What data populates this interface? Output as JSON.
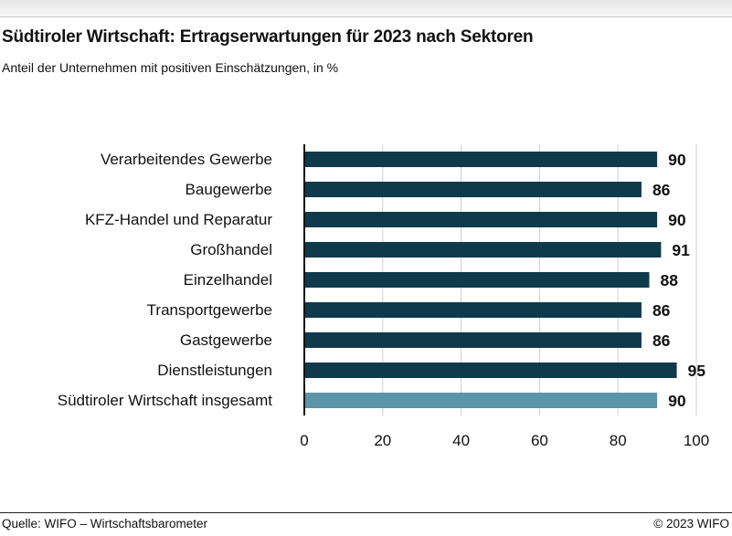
{
  "header": {
    "title": "Südtiroler Wirtschaft: Ertragserwartungen für 2023 nach Sektoren",
    "subtitle": "Anteil der Unternehmen mit positiven Einschätzungen, in %"
  },
  "footer": {
    "source": "Quelle: WIFO – Wirtschaftsbarometer",
    "copyright": "© 2023 WIFO"
  },
  "colors": {
    "bar": "#0f3a4b",
    "bar_total": "#5b95aa",
    "axis": "#111111",
    "grid": "#cfcfcf"
  },
  "chart_data": {
    "type": "bar",
    "orientation": "horizontal",
    "categories": [
      "Verarbeitendes Gewerbe",
      "Baugewerbe",
      "KFZ-Handel und Reparatur",
      "Großhandel",
      "Einzelhandel",
      "Transportgewerbe",
      "Gastgewerbe",
      "Dienstleistungen",
      "Südtiroler Wirtschaft insgesamt"
    ],
    "values": [
      90,
      86,
      90,
      91,
      88,
      86,
      86,
      95,
      90
    ],
    "data_labels": [
      "90",
      "86",
      "90",
      "91",
      "88",
      "86",
      "86",
      "95",
      "90"
    ],
    "highlight_index": 8,
    "xlim": [
      0,
      100
    ],
    "xticks": [
      "0",
      "20",
      "40",
      "60",
      "80",
      "100"
    ],
    "grid": true
  }
}
